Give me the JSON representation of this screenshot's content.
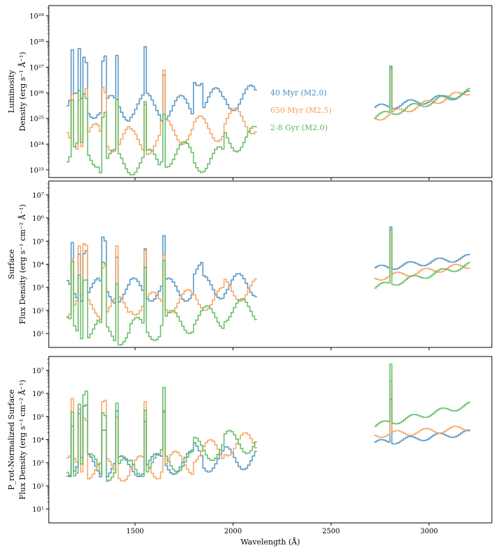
{
  "chart_data": [
    {
      "type": "line",
      "panel": "top",
      "ylabel": [
        "Luminosity",
        "Density (erg s⁻¹ Å⁻¹)"
      ],
      "yscale": "log",
      "ylim_exp": [
        22.7,
        29.4
      ],
      "yticks": [
        {
          "exp": 23,
          "label": "10²³"
        },
        {
          "exp": 24,
          "label": "10²⁴"
        },
        {
          "exp": 25,
          "label": "10²⁵"
        },
        {
          "exp": 26,
          "label": "10²⁶"
        },
        {
          "exp": 27,
          "label": "10²⁷"
        },
        {
          "exp": 28,
          "label": "10²⁸"
        },
        {
          "exp": 29,
          "label": "10²⁹"
        }
      ],
      "legend": [
        "40 Myr (M2.0)",
        "650 Myr (M2.5)",
        "2-8 Gyr (M2.0)"
      ],
      "series": [
        {
          "name": "40 Myr (M2.0)",
          "base": [
            25.5,
            25.4,
            25.5,
            25.4,
            25.7,
            25.8
          ],
          "red_start": 25.4,
          "red_end": 25.95,
          "bump": 1.8,
          "peak_add": 1.8
        },
        {
          "name": "650 Myr (M2.5)",
          "base": [
            24.3,
            24.2,
            24.1,
            24.5,
            24.6,
            24.9
          ],
          "red_start": 25.0,
          "red_end": 26.05,
          "bump": 0,
          "peak_add": 1.9
        },
        {
          "name": "2-8 Gyr (M2.0)",
          "base": [
            23.6,
            23.3,
            23.3,
            23.6,
            23.4,
            24.2
          ],
          "red_start": 25.05,
          "red_end": 26.05,
          "bump": 0,
          "peak_add": 2.0
        }
      ]
    },
    {
      "type": "line",
      "panel": "middle",
      "ylabel": [
        "Surface",
        "Flux Density (erg s⁻¹ cm⁻² Å⁻¹)"
      ],
      "yscale": "log",
      "ylim_exp": [
        0.4,
        7.6
      ],
      "yticks": [
        {
          "exp": 1,
          "label": "10¹"
        },
        {
          "exp": 2,
          "label": "10²"
        },
        {
          "exp": 3,
          "label": "10³"
        },
        {
          "exp": 4,
          "label": "10⁴"
        },
        {
          "exp": 5,
          "label": "10⁵"
        },
        {
          "exp": 6,
          "label": "10⁶"
        },
        {
          "exp": 7,
          "label": "10⁷"
        }
      ],
      "series": [
        {
          "name": "40 Myr (M2.0)",
          "base": [
            2.9,
            2.8,
            2.9,
            2.9,
            3.0,
            3.1
          ],
          "red_start": 3.8,
          "red_end": 4.3,
          "bump": 1.0,
          "peak_add": 2.0
        },
        {
          "name": "650 Myr (M2.5)",
          "base": [
            2.2,
            2.1,
            2.3,
            2.4,
            2.5,
            2.9
          ],
          "red_start": 3.4,
          "red_end": 3.95,
          "bump": 0,
          "peak_add": 2.2
        },
        {
          "name": "2-8 Gyr (M2.0)",
          "base": [
            1.2,
            1.0,
            1.2,
            1.5,
            1.7,
            2.0
          ],
          "red_start": 3.0,
          "red_end": 3.95,
          "bump": 0,
          "peak_add": 2.6
        }
      ]
    },
    {
      "type": "line",
      "panel": "bottom",
      "ylabel": [
        "P_rot-Normalized Surface",
        "Flux Density (erg s⁻¹ cm⁻² Å⁻¹)"
      ],
      "yscale": "log",
      "ylim_exp": [
        0.4,
        7.6
      ],
      "yticks": [
        {
          "exp": 1,
          "label": "10¹"
        },
        {
          "exp": 2,
          "label": "10²"
        },
        {
          "exp": 3,
          "label": "10³"
        },
        {
          "exp": 4,
          "label": "10⁴"
        },
        {
          "exp": 5,
          "label": "10⁵"
        },
        {
          "exp": 6,
          "label": "10⁶"
        },
        {
          "exp": 7,
          "label": "10⁷"
        }
      ],
      "series": [
        {
          "name": "40 Myr (M2.0)",
          "base": [
            2.9,
            2.8,
            2.9,
            3.0,
            3.1,
            3.2
          ],
          "red_start": 3.85,
          "red_end": 4.3,
          "bump": 0.6,
          "peak_add": 2.1
        },
        {
          "name": "650 Myr (M2.5)",
          "base": [
            2.8,
            2.7,
            2.8,
            3.0,
            3.5,
            3.8
          ],
          "red_start": 4.2,
          "red_end": 4.5,
          "bump": 0,
          "peak_add": 2.5
        },
        {
          "name": "2-8 Gyr (M2.0)",
          "base": [
            2.9,
            2.7,
            2.9,
            3.1,
            3.6,
            3.9
          ],
          "red_start": 4.6,
          "red_end": 5.5,
          "bump": 0,
          "peak_add": 2.8
        }
      ]
    }
  ],
  "shared": {
    "xlabel": "Wavelength (Å)",
    "xlim": [
      1060,
      3320
    ],
    "xticks": [
      1500,
      2000,
      2500,
      3000
    ],
    "fuv_range": [
      1150,
      2110
    ],
    "nuv_range": [
      2720,
      3200
    ],
    "emission_lines": [
      1175,
      1206,
      1240,
      1336,
      1400,
      1550,
      1640,
      2800
    ]
  },
  "colors": {
    "40 Myr (M2.0)": "#4a8fc3",
    "650 Myr (M2.5)": "#f5a05a",
    "2-8 Gyr (M2.0)": "#5cb85c"
  }
}
